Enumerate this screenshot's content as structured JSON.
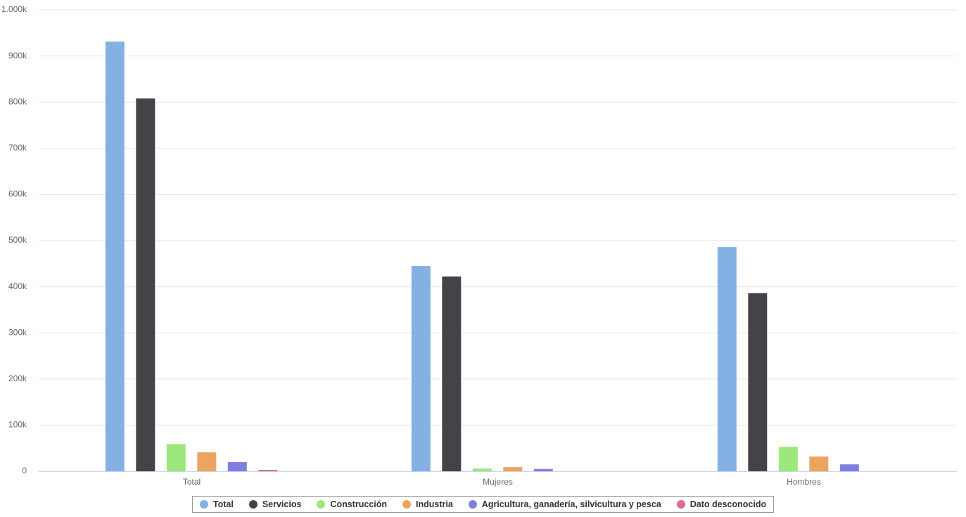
{
  "chart_data": {
    "type": "bar",
    "categories": [
      "Total",
      "Mujeres",
      "Hombres"
    ],
    "series": [
      {
        "name": "Total",
        "color": "#85b0e3",
        "values": [
          931000,
          445000,
          486000
        ]
      },
      {
        "name": "Servicios",
        "color": "#434348",
        "values": [
          808000,
          422000,
          386000
        ]
      },
      {
        "name": "Construcción",
        "color": "#9de87c",
        "values": [
          59000,
          6000,
          53000
        ]
      },
      {
        "name": "Industria",
        "color": "#eca561",
        "values": [
          41000,
          9000,
          32000
        ]
      },
      {
        "name": "Agricultura, ganadería, silvicultura y pesca",
        "color": "#7f7fe0",
        "values": [
          20000,
          5000,
          15000
        ]
      },
      {
        "name": "Dato desconocido",
        "color": "#e06b8a",
        "values": [
          3000,
          0,
          0
        ]
      }
    ],
    "ylim": [
      0,
      1000000
    ],
    "yticks": [
      0,
      {
        "value": 100000,
        "label": "100k"
      },
      {
        "value": 200000,
        "label": "200k"
      },
      {
        "value": 300000,
        "label": "300k"
      },
      {
        "value": 400000,
        "label": "400k"
      },
      {
        "value": 500000,
        "label": "500k"
      },
      {
        "value": 600000,
        "label": "600k"
      },
      {
        "value": 700000,
        "label": "700k"
      },
      {
        "value": 800000,
        "label": "800k"
      },
      {
        "value": 900000,
        "label": "900k"
      },
      {
        "value": 1000000,
        "label": "1.000k"
      }
    ],
    "grid": true
  }
}
